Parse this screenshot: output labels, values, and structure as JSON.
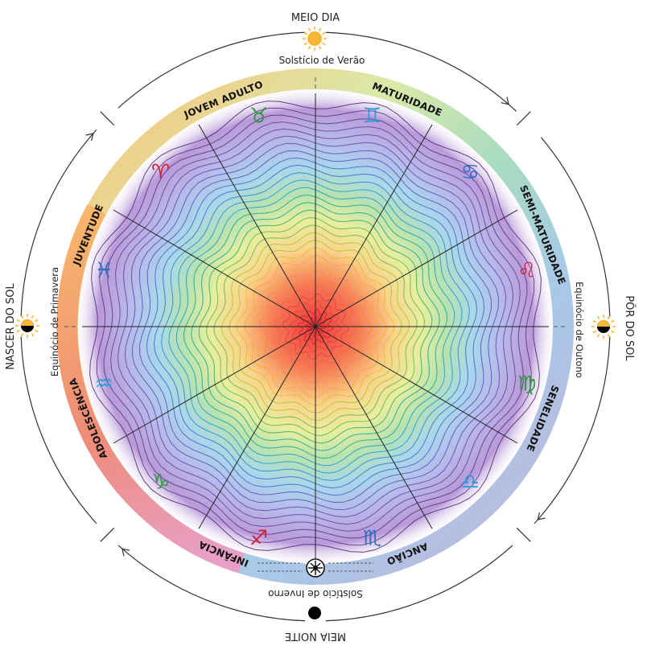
{
  "cardinal_labels": {
    "top": "MEIO DIA",
    "bottom": "MEIA NOITE",
    "left": "NASCER DO SOL",
    "right": "PÔR DO SOL"
  },
  "season_labels": {
    "top": "Solstício de Verão",
    "bottom": "Solstício de Inverno",
    "left": "Equinócio de Primavera",
    "right": "Equinócio de Outono"
  },
  "life_stages": [
    {
      "label": "JOVEM ADULTO"
    },
    {
      "label": "MATURIDADE"
    },
    {
      "label": "SEMI-MATURIDADE"
    },
    {
      "label": "SENELIDADE"
    },
    {
      "label": "ANCIÃO"
    },
    {
      "label": "INFÂNCIA"
    },
    {
      "label": "ADOLESCÊNCIA"
    },
    {
      "label": "JUVENTUDE"
    }
  ],
  "zodiac_signs": [
    {
      "name": "gemini-icon",
      "glyph": "♊",
      "color": "#2b9fd8"
    },
    {
      "name": "cancer-icon",
      "glyph": "♋",
      "color": "#2b6fc4"
    },
    {
      "name": "leo-icon",
      "glyph": "♌",
      "color": "#d0243a"
    },
    {
      "name": "virgo-icon",
      "glyph": "♍",
      "color": "#2e9a3c"
    },
    {
      "name": "libra-icon",
      "glyph": "♎",
      "color": "#2b9fd8"
    },
    {
      "name": "scorpio-icon",
      "glyph": "♏",
      "color": "#2b6fc4"
    },
    {
      "name": "sagittarius-icon",
      "glyph": "♐",
      "color": "#d0243a"
    },
    {
      "name": "capricorn-icon",
      "glyph": "♑",
      "color": "#2e9a3c"
    },
    {
      "name": "aquarius-icon",
      "glyph": "♒",
      "color": "#2b9fd8"
    },
    {
      "name": "pisces-icon",
      "glyph": "♓",
      "color": "#2b6fc4"
    },
    {
      "name": "aries-icon",
      "glyph": "♈",
      "color": "#d0243a"
    },
    {
      "name": "taurus-icon",
      "glyph": "♉",
      "color": "#2e9a3c"
    }
  ],
  "colors": {
    "sun": "#f7b733",
    "night": "#000000",
    "center": "#e8303a",
    "outer": "#9b6fc8"
  }
}
